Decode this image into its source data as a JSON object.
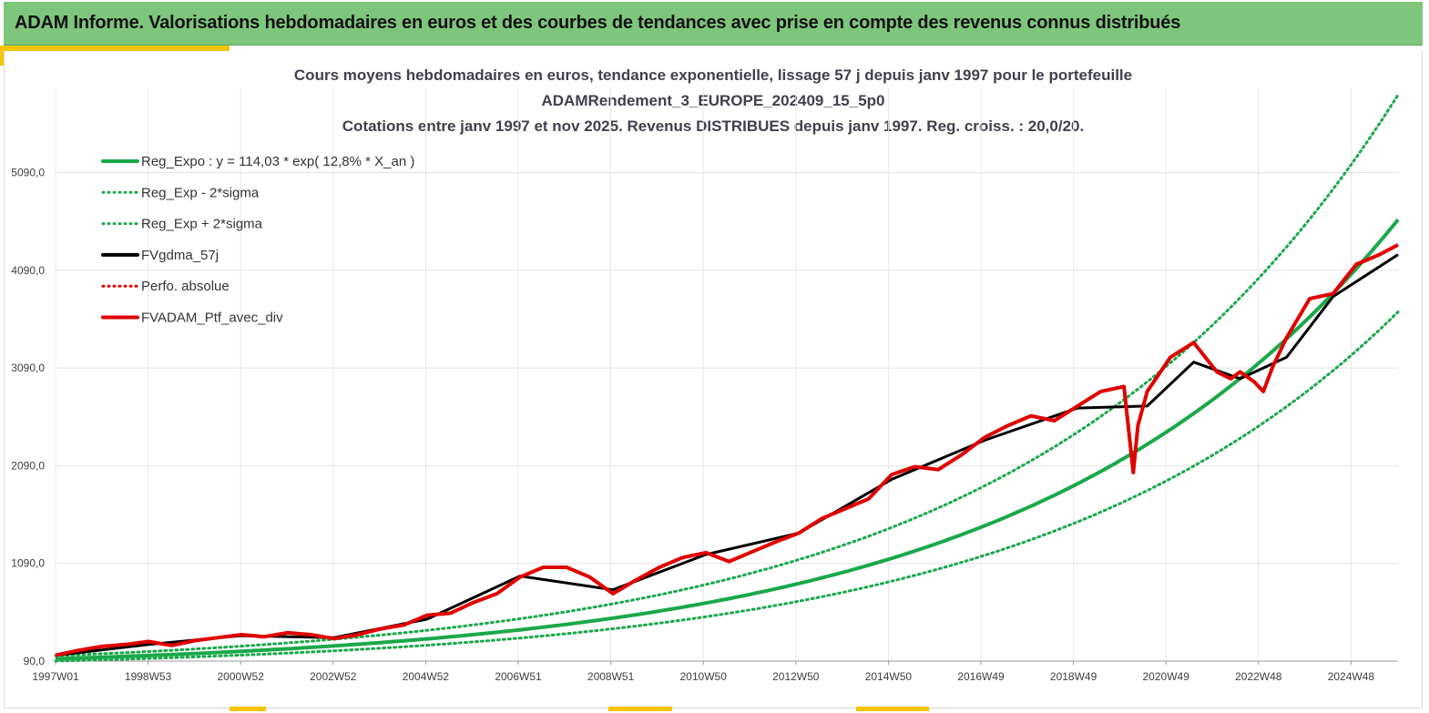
{
  "banner": {
    "title": "ADAM Informe. Valorisations hebdomadaires en euros et des courbes de tendances avec prise en compte des revenus connus distribués"
  },
  "colors": {
    "banner_bg": "#7dc67b",
    "accent_yellow": "#f4c400",
    "reg_expo": "#1aa84a",
    "reg_band": "#1aa84a",
    "fvgdma": "#000000",
    "perfo": "#e00000",
    "fvadam": "#e00000"
  },
  "chart_data": {
    "type": "line",
    "title_lines": [
      "Cours moyens hebdomadaires  en euros, tendance exponentielle, lissage 57 j depuis janv 1997 pour le portefeuille",
      "ADAMRendement_3_EUROPE_202409_15_5p0",
      "Cotations  entre janv 1997 et nov 2025. Revenus DISTRIBUES depuis janv 1997. Reg. croiss. : 20,0/20."
    ],
    "xlabel": "",
    "ylabel": "",
    "x_ticks": [
      "1997W01",
      "1998W53",
      "2000W52",
      "2002W52",
      "2004W52",
      "2006W51",
      "2008W51",
      "2010W50",
      "2012W50",
      "2014W50",
      "2016W49",
      "2018W49",
      "2020W49",
      "2022W48",
      "2024W48"
    ],
    "y_ticks": [
      "90,0",
      "1090,0",
      "2090,0",
      "3090,0",
      "4090,0",
      "5090,0"
    ],
    "ylim": [
      90,
      5090
    ],
    "xlim": [
      1997.0,
      2025.9
    ],
    "grid": true,
    "legend_position": "top-left",
    "legend": [
      {
        "label": "Reg_Expo : y = 114,03 * exp( 12,8% *  X_an )",
        "style": "solid",
        "color": "#1aa84a"
      },
      {
        "label": "Reg_Exp - 2*sigma",
        "style": "dotted",
        "color": "#1aa84a"
      },
      {
        "label": "Reg_Exp + 2*sigma",
        "style": "dotted",
        "color": "#1aa84a"
      },
      {
        "label": "FVgdma_57j",
        "style": "solid",
        "color": "#000000"
      },
      {
        "label": "Perfo. absolue",
        "style": "dotted",
        "color": "#e00000"
      },
      {
        "label": "FVADAM_Ptf_avec_div",
        "style": "solid",
        "color": "#e00000"
      }
    ],
    "regression": {
      "a": 114.03,
      "rate": 0.128,
      "band_factor_up": 1.277,
      "band_factor_down": 0.795
    },
    "series": [
      {
        "name": "FVADAM_Ptf_avec_div",
        "x": [
          1997.0,
          1997.5,
          1998.0,
          1998.5,
          1999.0,
          1999.5,
          2000.0,
          2000.5,
          2001.0,
          2001.5,
          2002.0,
          2002.5,
          2003.0,
          2003.5,
          2004.0,
          2004.5,
          2005.0,
          2005.5,
          2006.0,
          2006.5,
          2007.0,
          2007.5,
          2008.0,
          2008.5,
          2009.0,
          2009.5,
          2010.0,
          2010.5,
          2011.0,
          2011.5,
          2012.0,
          2012.5,
          2013.0,
          2013.5,
          2014.0,
          2014.5,
          2015.0,
          2015.5,
          2016.0,
          2016.5,
          2017.0,
          2017.5,
          2018.0,
          2018.5,
          2019.0,
          2019.5,
          2020.0,
          2020.2,
          2020.3,
          2020.5,
          2021.0,
          2021.5,
          2022.0,
          2022.3,
          2022.5,
          2022.8,
          2023.0,
          2023.2,
          2023.5,
          2024.0,
          2024.5,
          2025.0,
          2025.5,
          2025.9
        ],
        "y": [
          150,
          200,
          240,
          260,
          290,
          250,
          300,
          330,
          360,
          340,
          380,
          360,
          320,
          360,
          420,
          460,
          560,
          580,
          690,
          780,
          950,
          1050,
          1050,
          950,
          780,
          920,
          1050,
          1150,
          1200,
          1110,
          1210,
          1310,
          1400,
          1550,
          1650,
          1750,
          2000,
          2080,
          2050,
          2200,
          2380,
          2500,
          2600,
          2550,
          2700,
          2850,
          2900,
          2020,
          2500,
          2850,
          3200,
          3350,
          3050,
          2980,
          3050,
          2950,
          2850,
          3100,
          3400,
          3800,
          3850,
          4150,
          4250,
          4350
        ]
      },
      {
        "name": "FVgdma_57j",
        "x": [
          1997.0,
          1999.0,
          2001.0,
          2003.0,
          2005.0,
          2007.0,
          2009.0,
          2011.0,
          2013.0,
          2015.0,
          2017.0,
          2019.0,
          2020.5,
          2021.5,
          2022.5,
          2023.5,
          2024.5,
          2025.9
        ],
        "y": [
          150,
          260,
          350,
          330,
          520,
          960,
          820,
          1180,
          1400,
          1950,
          2350,
          2680,
          2700,
          3150,
          2980,
          3200,
          3820,
          4250
        ]
      }
    ]
  }
}
